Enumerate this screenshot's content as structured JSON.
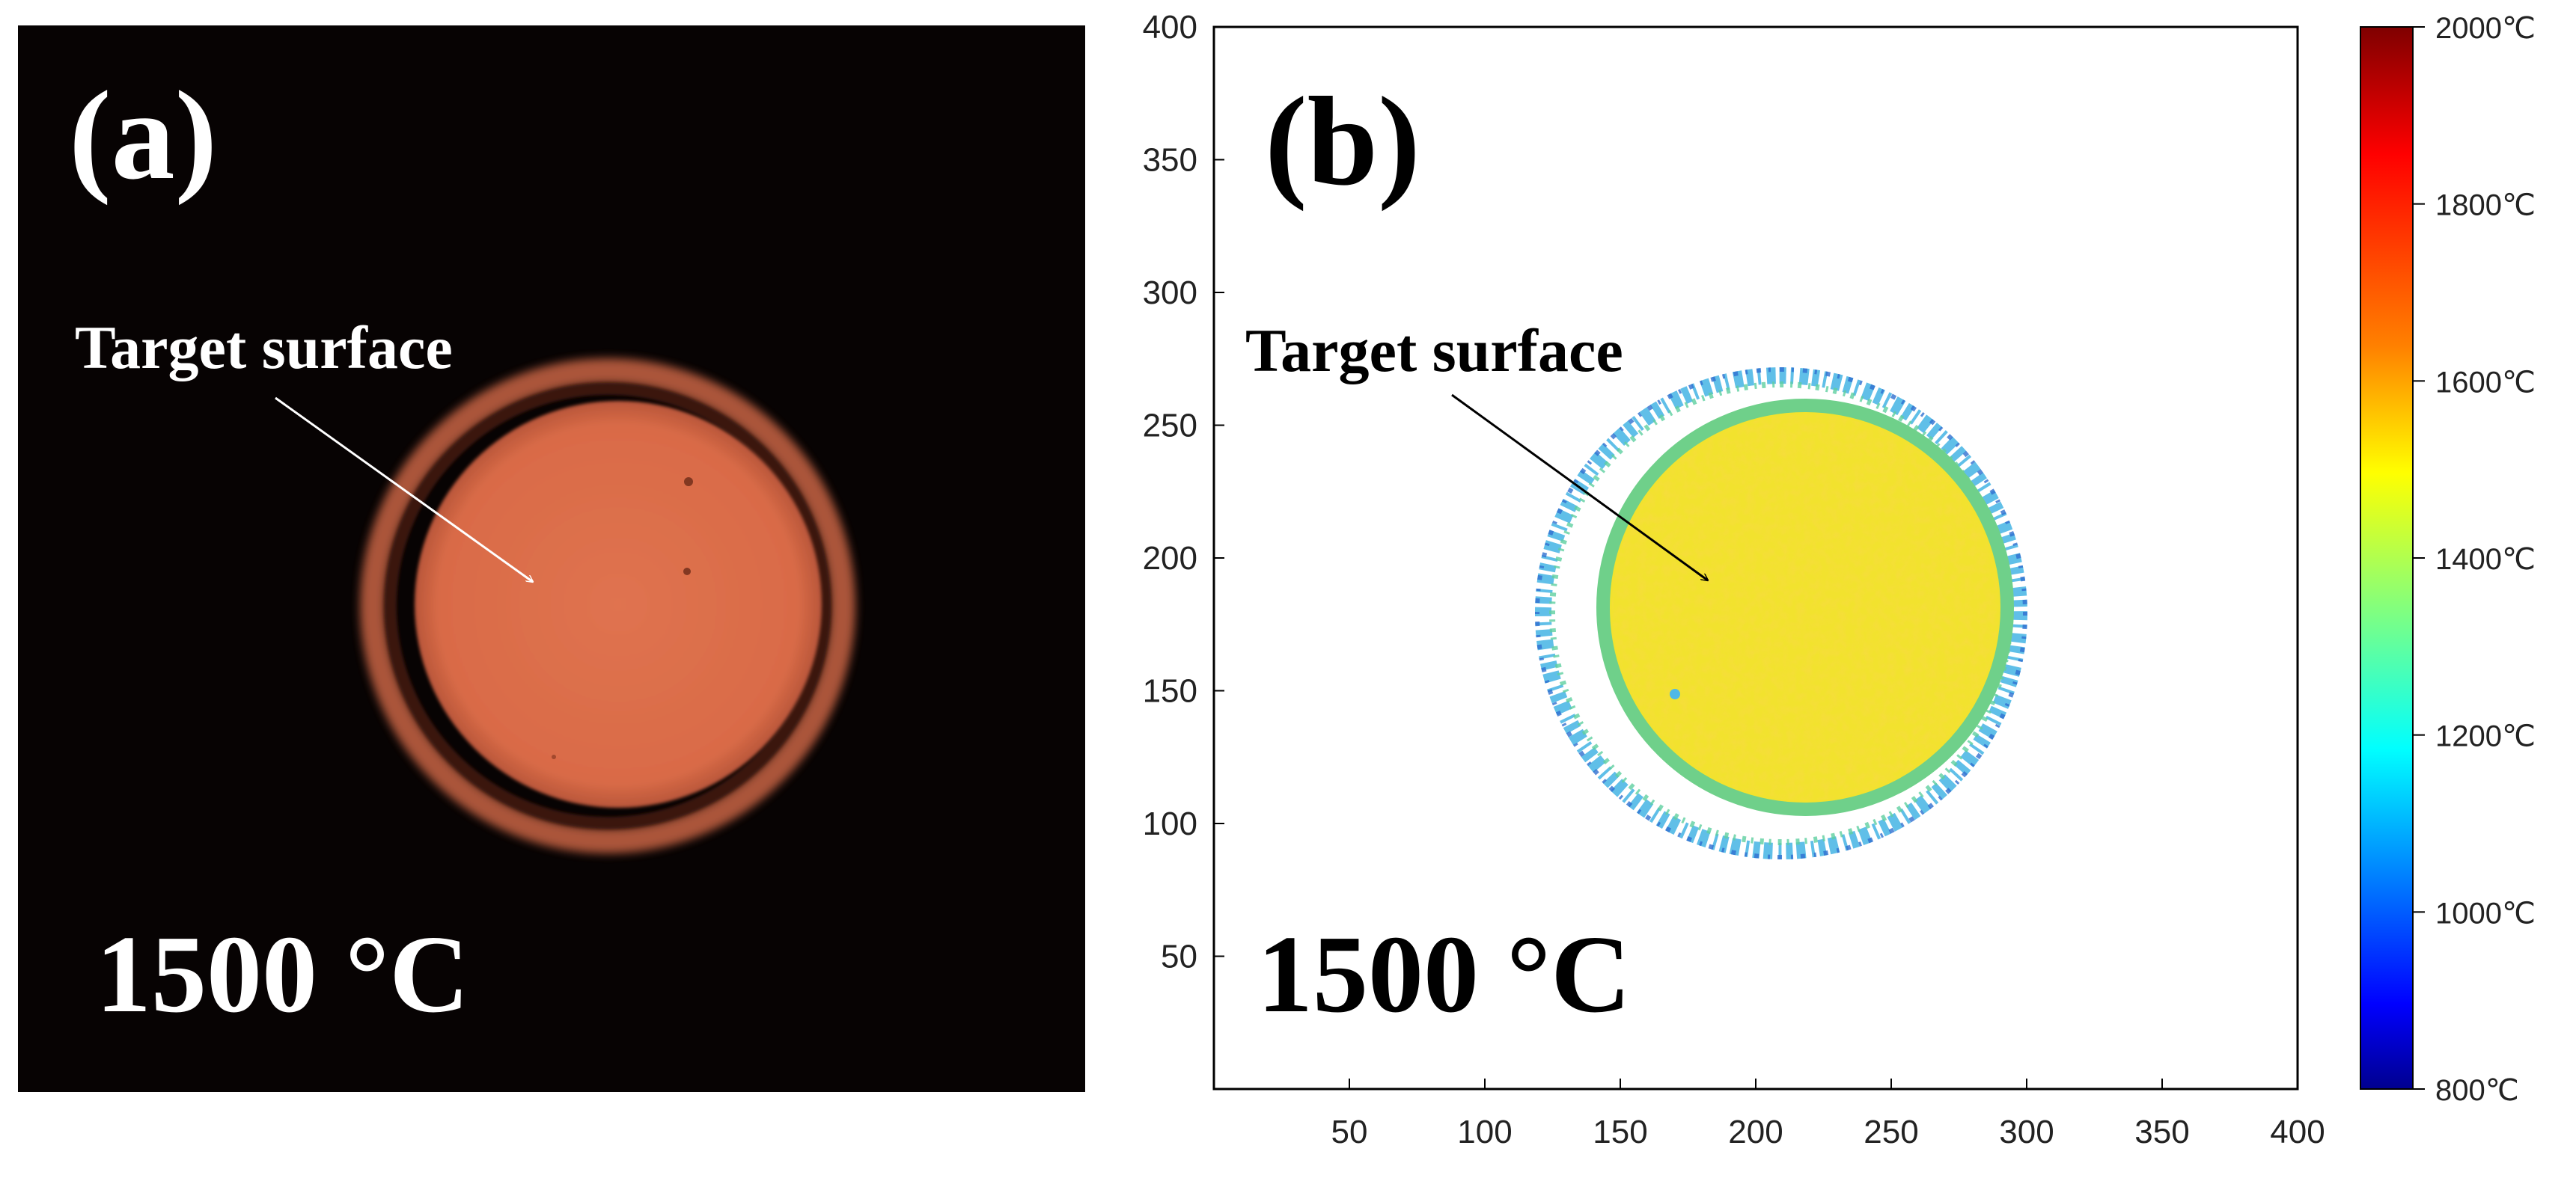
{
  "panel_a": {
    "label": "(a)",
    "annotation": "Target surface",
    "temperature": "1500 °C",
    "colors": {
      "background": "#070303",
      "surface": "#de6f4a",
      "ring": "#b45a3c"
    }
  },
  "panel_b": {
    "label": "(b)",
    "annotation": "Target surface",
    "temperature": "1500 °C",
    "x_ticks": [
      "50",
      "100",
      "150",
      "200",
      "250",
      "300",
      "350",
      "400"
    ],
    "y_ticks": [
      "50",
      "100",
      "150",
      "200",
      "250",
      "300",
      "350",
      "400"
    ],
    "x_range": [
      0,
      400
    ],
    "y_range": [
      0,
      400
    ],
    "colorbar": {
      "ticks": [
        "2000℃",
        "1800℃",
        "1600℃",
        "1400℃",
        "1200℃",
        "1000℃",
        "800℃"
      ],
      "range": [
        800,
        2000
      ],
      "colors": [
        "#7f0000",
        "#ff0000",
        "#ff8000",
        "#ffff00",
        "#80ff80",
        "#00ffff",
        "#0080ff",
        "#0000ff",
        "#00008f"
      ]
    },
    "colors": {
      "surface": "#f2e22e",
      "ring": "#4fb8e6"
    }
  }
}
